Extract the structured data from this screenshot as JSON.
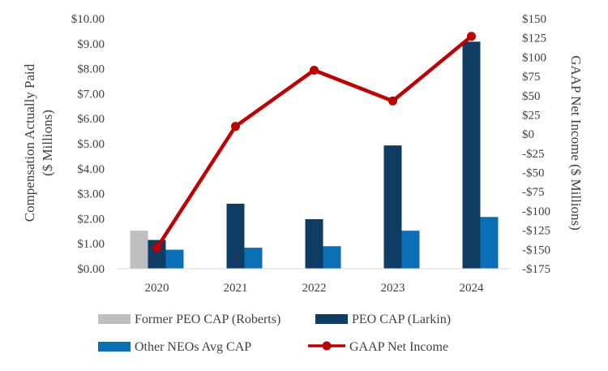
{
  "chart_data": {
    "type": "bar+line",
    "categories": [
      "2020",
      "2021",
      "2022",
      "2023",
      "2024"
    ],
    "series": [
      {
        "name": "Former PEO CAP (Roberts)",
        "type": "bar",
        "axis": "left",
        "color": "#bfbfc1",
        "values": [
          1.52,
          null,
          null,
          null,
          null
        ]
      },
      {
        "name": "PEO CAP (Larkin)",
        "type": "bar",
        "axis": "left",
        "color": "#0e3c62",
        "values": [
          1.15,
          2.6,
          1.98,
          4.93,
          9.08
        ]
      },
      {
        "name": "Other NEOs Avg CAP",
        "type": "bar",
        "axis": "left",
        "color": "#0b6fb8",
        "values": [
          0.76,
          0.84,
          0.9,
          1.52,
          2.07
        ]
      },
      {
        "name": "GAAP Net Income",
        "type": "line",
        "axis": "right",
        "color": "#c00000",
        "values": [
          -148,
          10,
          83,
          43,
          127
        ]
      }
    ],
    "yleft": {
      "label_line1": "Compensation Actually Paid",
      "label_line2": "($ Millions)",
      "ylim": [
        0,
        10
      ],
      "ticks": [
        0,
        1,
        2,
        3,
        4,
        5,
        6,
        7,
        8,
        9,
        10
      ],
      "tick_labels": [
        "$0.00",
        "$1.00",
        "$2.00",
        "$3.00",
        "$4.00",
        "$5.00",
        "$6.00",
        "$7.00",
        "$8.00",
        "$9.00",
        "$10.00"
      ]
    },
    "yright": {
      "label": "GAAP Net Income ($ Millions)",
      "ylim": [
        -175,
        150
      ],
      "ticks": [
        150,
        125,
        100,
        75,
        50,
        25,
        0,
        -25,
        -50,
        -75,
        -100,
        -125,
        -150,
        -175
      ],
      "tick_labels": [
        "$150",
        "$125",
        "$100",
        "$75",
        "$50",
        "$25",
        "$0",
        "-$25",
        "-$50",
        "-$75",
        "-$100",
        "-$125",
        "-$150",
        "-$175"
      ]
    },
    "grid": false,
    "legend_position": "bottom"
  }
}
